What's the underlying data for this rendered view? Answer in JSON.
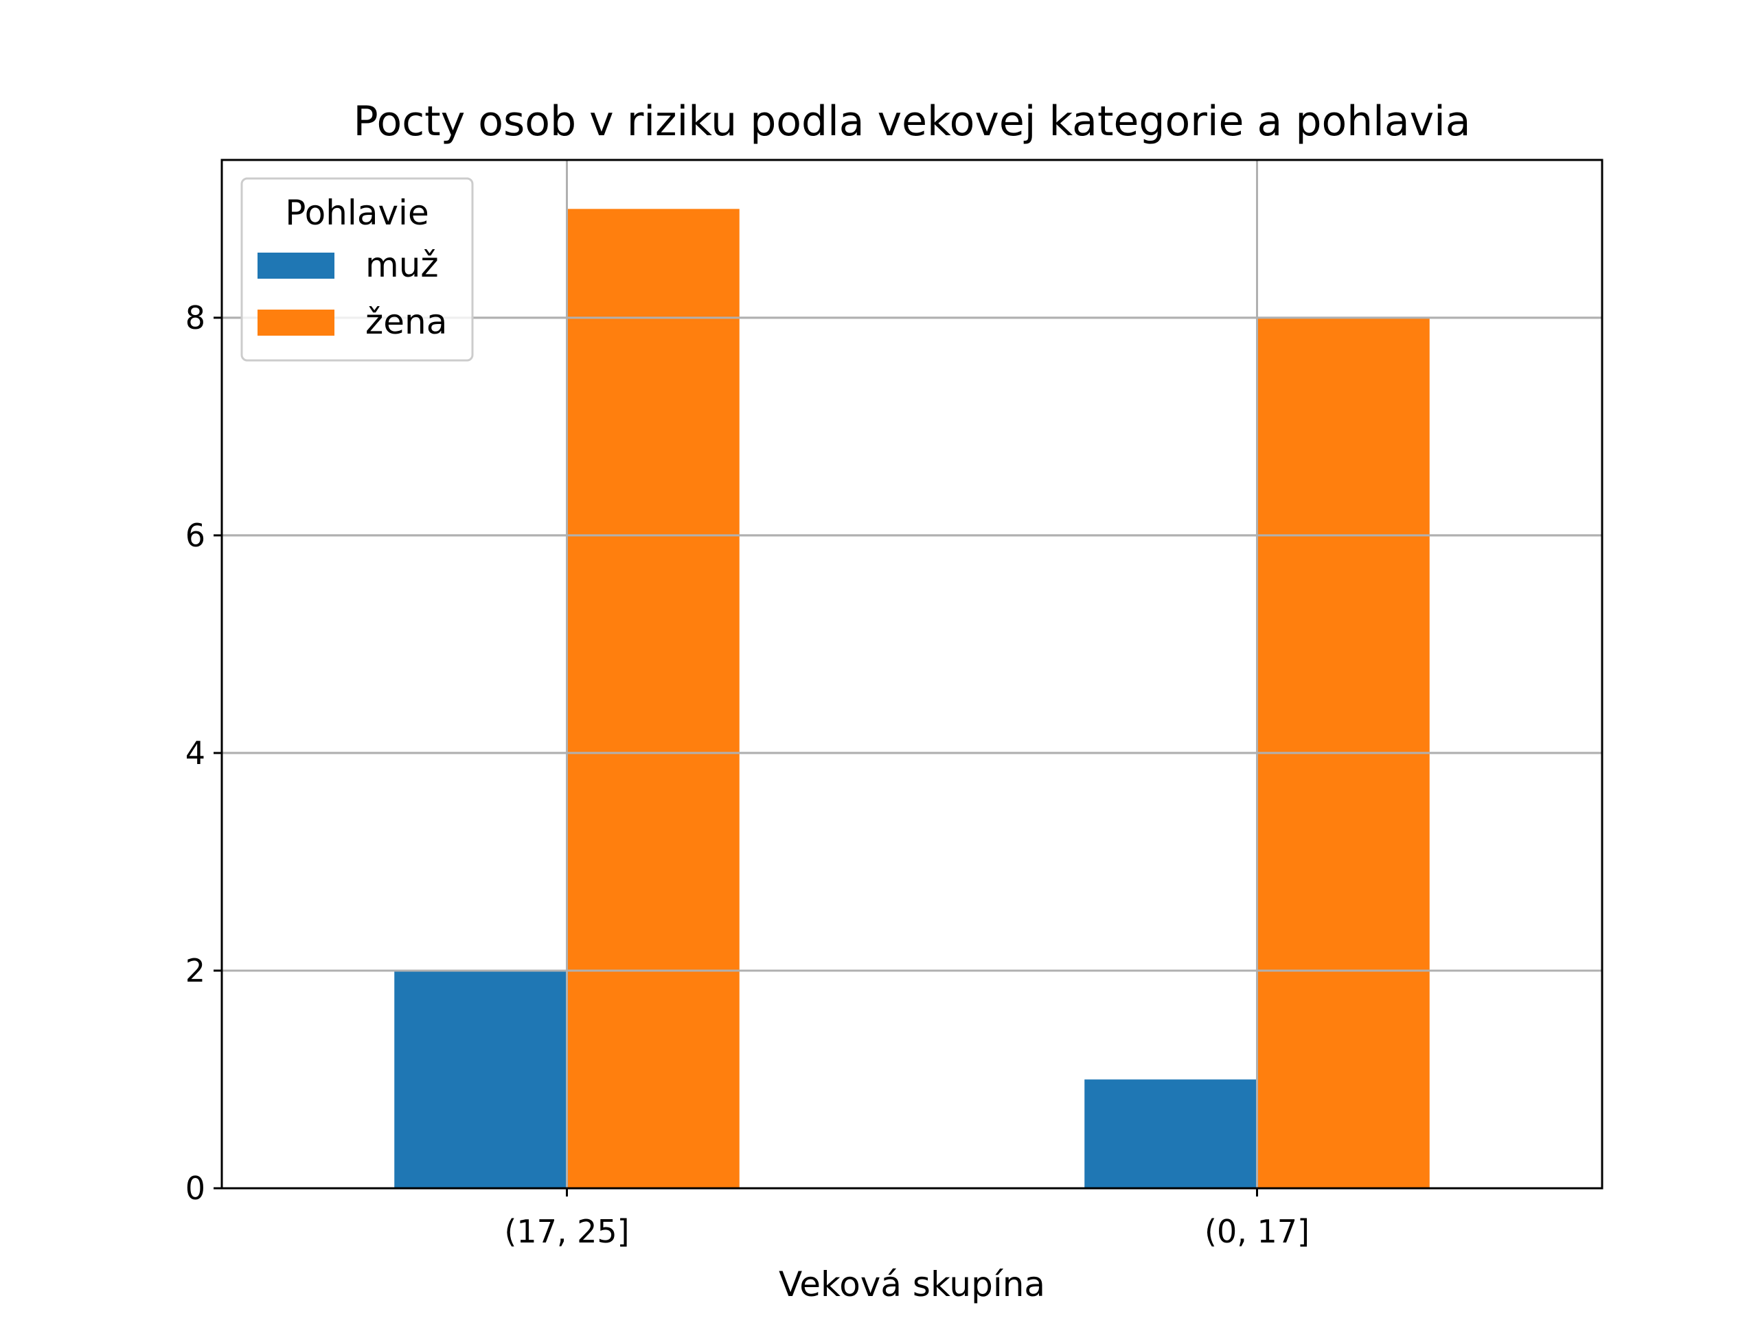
{
  "chart_data": {
    "type": "bar",
    "title": "Pocty osob v riziku podla vekovej kategorie a pohlavia",
    "xlabel": "Veková skupína",
    "ylabel": "",
    "categories": [
      "(17, 25]",
      "(0, 17]"
    ],
    "series": [
      {
        "name": "muž",
        "values": [
          2,
          1
        ],
        "color": "#1f77b4"
      },
      {
        "name": "žena",
        "values": [
          9,
          8
        ],
        "color": "#ff7f0e"
      }
    ],
    "ylim": [
      0,
      9.45
    ],
    "yticks": [
      0,
      2,
      4,
      6,
      8
    ],
    "grid": true,
    "legend": {
      "title": "Pohlavie",
      "placement": "top-left"
    }
  }
}
